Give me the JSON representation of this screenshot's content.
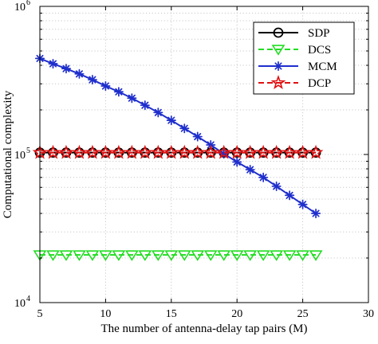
{
  "chart_data": {
    "type": "line",
    "title": "",
    "xlabel": "The number of antenna-delay tap pairs (M)",
    "ylabel": "Computational complexity",
    "xlim": [
      5,
      30
    ],
    "ylim": [
      10000,
      1000000
    ],
    "yscale": "log",
    "grid": true,
    "legend_position": "top-right",
    "x_ticks": [
      5,
      10,
      15,
      20,
      25,
      30
    ],
    "x_tick_labels": [
      "5",
      "10",
      "15",
      "20",
      "25",
      "30"
    ],
    "y_ticks": [
      10000,
      100000,
      1000000
    ],
    "y_tick_labels": [
      {
        "base": "10",
        "exp": "4"
      },
      {
        "base": "10",
        "exp": "5"
      },
      {
        "base": "10",
        "exp": "6"
      }
    ],
    "x": [
      5,
      6,
      7,
      8,
      9,
      10,
      11,
      12,
      13,
      14,
      15,
      16,
      17,
      18,
      19,
      20,
      21,
      22,
      23,
      24,
      25,
      26
    ],
    "series": [
      {
        "name": "SDP",
        "color": "#000000",
        "line_style": "solid",
        "marker": "circle",
        "values": [
          103000,
          103000,
          103000,
          103000,
          103000,
          103000,
          103000,
          103000,
          103000,
          103000,
          103000,
          103000,
          103000,
          103000,
          103000,
          103000,
          103000,
          103000,
          103000,
          103000,
          103000,
          103000
        ]
      },
      {
        "name": "DCS",
        "color": "#22dd22",
        "line_style": "dashed",
        "marker": "triangle-down",
        "values": [
          21000,
          21000,
          21000,
          21000,
          21000,
          21000,
          21000,
          21000,
          21000,
          21000,
          21000,
          21000,
          21000,
          21000,
          21000,
          21000,
          21000,
          21000,
          21000,
          21000,
          21000,
          21000
        ]
      },
      {
        "name": "MCM",
        "color": "#1f2fcc",
        "line_style": "solid",
        "marker": "asterisk",
        "values": [
          445000,
          410000,
          380000,
          350000,
          320000,
          290000,
          265000,
          240000,
          215000,
          192000,
          170000,
          150000,
          132000,
          116000,
          101000,
          89000,
          79000,
          70000,
          61000,
          53000,
          46000,
          40000
        ]
      },
      {
        "name": "DCP",
        "color": "#e01010",
        "line_style": "dashed",
        "marker": "star",
        "values": [
          103000,
          103000,
          103000,
          103000,
          103000,
          103000,
          103000,
          103000,
          103000,
          103000,
          103000,
          103000,
          103000,
          103000,
          103000,
          103000,
          103000,
          103000,
          103000,
          103000,
          103000,
          103000
        ]
      }
    ]
  }
}
